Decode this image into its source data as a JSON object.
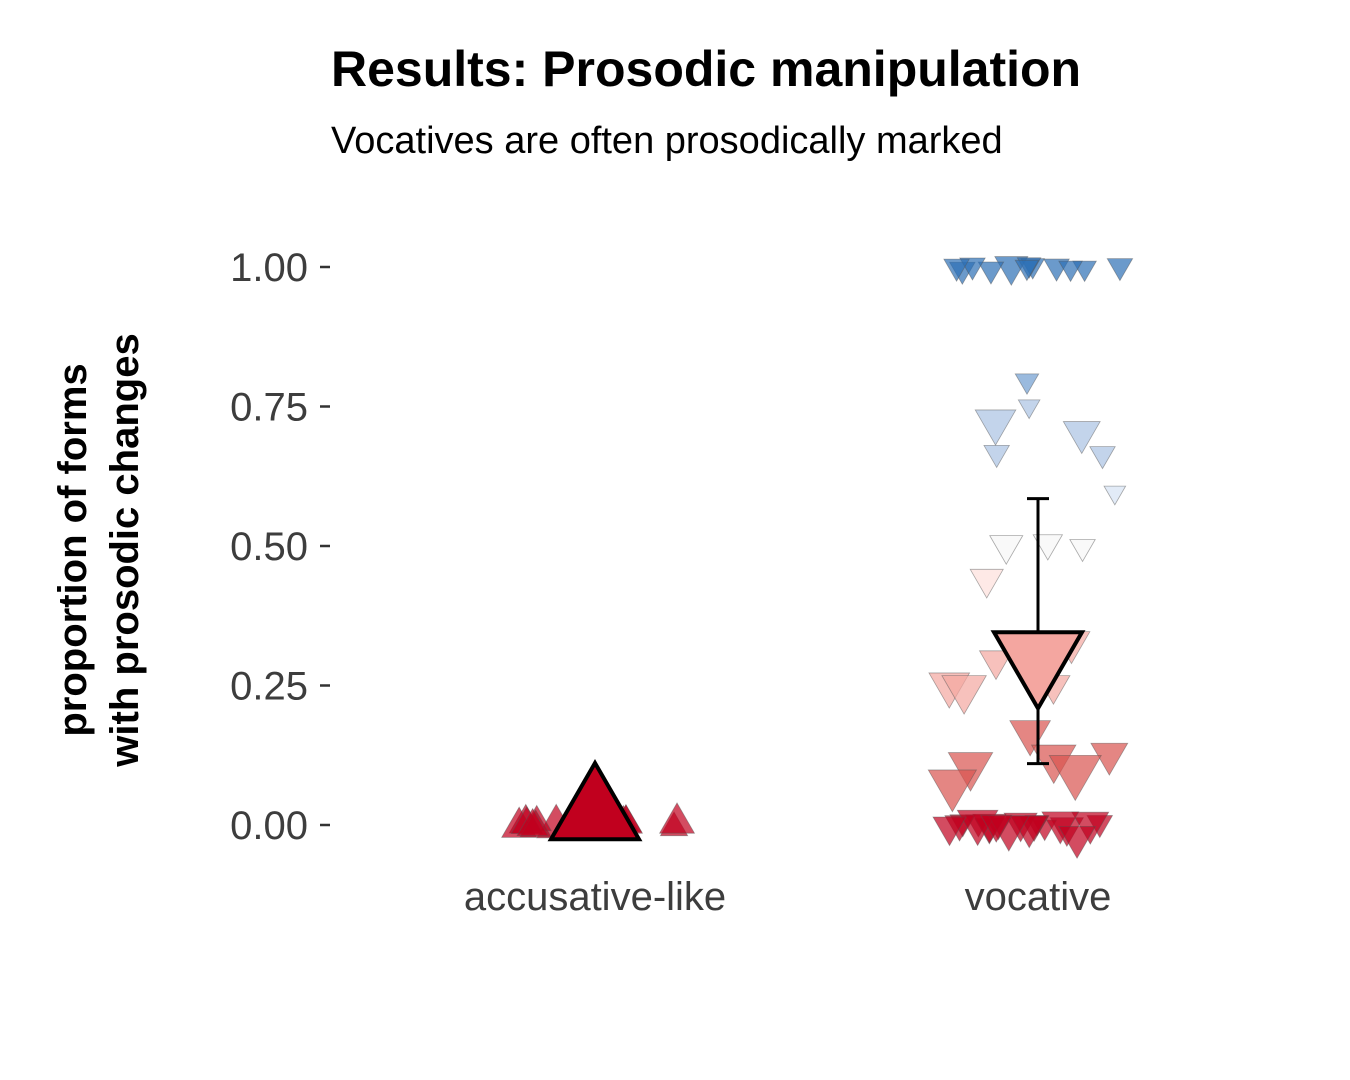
{
  "chart_data": {
    "type": "scatter",
    "title": "Results: Prosodic manipulation",
    "subtitle": "Vocatives are often prosodically marked",
    "ylabel_lines": [
      "proportion of forms",
      "with prosodic changes"
    ],
    "xlabel": "",
    "categories": [
      "accusative-like",
      "vocative"
    ],
    "ylim": [
      -0.05,
      1.05
    ],
    "yticks": [
      {
        "value": 0.0,
        "label": "0.00"
      },
      {
        "value": 0.25,
        "label": "0.25"
      },
      {
        "value": 0.5,
        "label": "0.50"
      },
      {
        "value": 0.75,
        "label": "0.75"
      },
      {
        "value": 1.0,
        "label": "1.00"
      }
    ],
    "grid": false,
    "legend": "none",
    "colors": {
      "strong_red": "#c1001e",
      "mid_red": "#d9534f",
      "light_red": "#f4a6a0",
      "pale_red": "#fde0dc",
      "white": "#f7f7f7",
      "pale_blue": "#d6e3f3",
      "light_blue": "#a9c2e2",
      "mid_blue": "#6f9cd0",
      "strong_blue": "#2c6fb5",
      "mean_accusative": "#c1001e",
      "mean_vocative": "#f4a6a0"
    },
    "series": [
      {
        "category": "accusative-like",
        "marker": "triangle-up",
        "points": [
          {
            "y": 0.0,
            "n": 12
          },
          {
            "y": 0.0,
            "n": 10
          },
          {
            "y": 0.0,
            "n": 9
          },
          {
            "y": 0.0,
            "n": 11
          },
          {
            "y": 0.0,
            "n": 14
          },
          {
            "y": 0.0,
            "n": 13
          },
          {
            "y": 0.0,
            "n": 8
          },
          {
            "y": 0.0,
            "n": 10
          },
          {
            "y": 0.0,
            "n": 9
          },
          {
            "y": 0.0,
            "n": 12
          },
          {
            "y": 0.0,
            "n": 8
          },
          {
            "y": 0.0,
            "n": 7
          },
          {
            "y": 0.0,
            "n": 9
          },
          {
            "y": 0.0,
            "n": 11
          },
          {
            "y": 0.0,
            "n": 8
          },
          {
            "y": 0.0,
            "n": 10
          },
          {
            "y": 0.0,
            "n": 9
          },
          {
            "y": 0.0,
            "n": 12
          },
          {
            "y": 0.0,
            "n": 8
          },
          {
            "y": 0.0,
            "n": 9
          }
        ]
      },
      {
        "category": "vocative",
        "marker": "triangle-down",
        "points": [
          {
            "y": 1.0,
            "n": 10
          },
          {
            "y": 1.0,
            "n": 6
          },
          {
            "y": 1.0,
            "n": 6
          },
          {
            "y": 1.0,
            "n": 5
          },
          {
            "y": 1.0,
            "n": 6
          },
          {
            "y": 1.0,
            "n": 5
          },
          {
            "y": 1.0,
            "n": 6
          },
          {
            "y": 1.0,
            "n": 5
          },
          {
            "y": 1.0,
            "n": 6
          },
          {
            "y": 1.0,
            "n": 5
          },
          {
            "y": 1.0,
            "n": 6
          },
          {
            "y": 1.0,
            "n": 5
          },
          {
            "y": 0.8,
            "n": 5
          },
          {
            "y": 0.75,
            "n": 4
          },
          {
            "y": 0.72,
            "n": 14
          },
          {
            "y": 0.7,
            "n": 12
          },
          {
            "y": 0.67,
            "n": 6
          },
          {
            "y": 0.67,
            "n": 6
          },
          {
            "y": 0.6,
            "n": 4
          },
          {
            "y": 0.5,
            "n": 6
          },
          {
            "y": 0.5,
            "n": 8
          },
          {
            "y": 0.5,
            "n": 10
          },
          {
            "y": 0.44,
            "n": 10
          },
          {
            "y": 0.33,
            "n": 12
          },
          {
            "y": 0.3,
            "n": 10
          },
          {
            "y": 0.25,
            "n": 14
          },
          {
            "y": 0.25,
            "n": 10
          },
          {
            "y": 0.25,
            "n": 16
          },
          {
            "y": 0.17,
            "n": 14
          },
          {
            "y": 0.12,
            "n": 16
          },
          {
            "y": 0.11,
            "n": 16
          },
          {
            "y": 0.125,
            "n": 12
          },
          {
            "y": 0.07,
            "n": 18
          },
          {
            "y": 0.1,
            "n": 20
          },
          {
            "y": 0.0,
            "n": 10
          },
          {
            "y": 0.0,
            "n": 8
          },
          {
            "y": 0.0,
            "n": 6
          },
          {
            "y": 0.0,
            "n": 6
          },
          {
            "y": 0.0,
            "n": 5
          },
          {
            "y": 0.0,
            "n": 6
          },
          {
            "y": 0.0,
            "n": 5
          },
          {
            "y": 0.0,
            "n": 6
          },
          {
            "y": 0.0,
            "n": 8
          },
          {
            "y": 0.0,
            "n": 10
          },
          {
            "y": 0.0,
            "n": 12
          },
          {
            "y": 0.0,
            "n": 14
          },
          {
            "y": 0.0,
            "n": 12
          },
          {
            "y": 0.0,
            "n": 10
          },
          {
            "y": 0.0,
            "n": 8
          },
          {
            "y": 0.0,
            "n": 10
          },
          {
            "y": 0.0,
            "n": 12
          },
          {
            "y": 0.0,
            "n": 14
          },
          {
            "y": -0.02,
            "n": 12
          },
          {
            "y": 0.0,
            "n": 9
          }
        ]
      }
    ],
    "summary": [
      {
        "category": "accusative-like",
        "mean": 0.02,
        "marker": "triangle-up"
      },
      {
        "category": "vocative",
        "mean": 0.3,
        "lower": 0.11,
        "upper": 0.585,
        "marker": "triangle-down"
      }
    ]
  }
}
